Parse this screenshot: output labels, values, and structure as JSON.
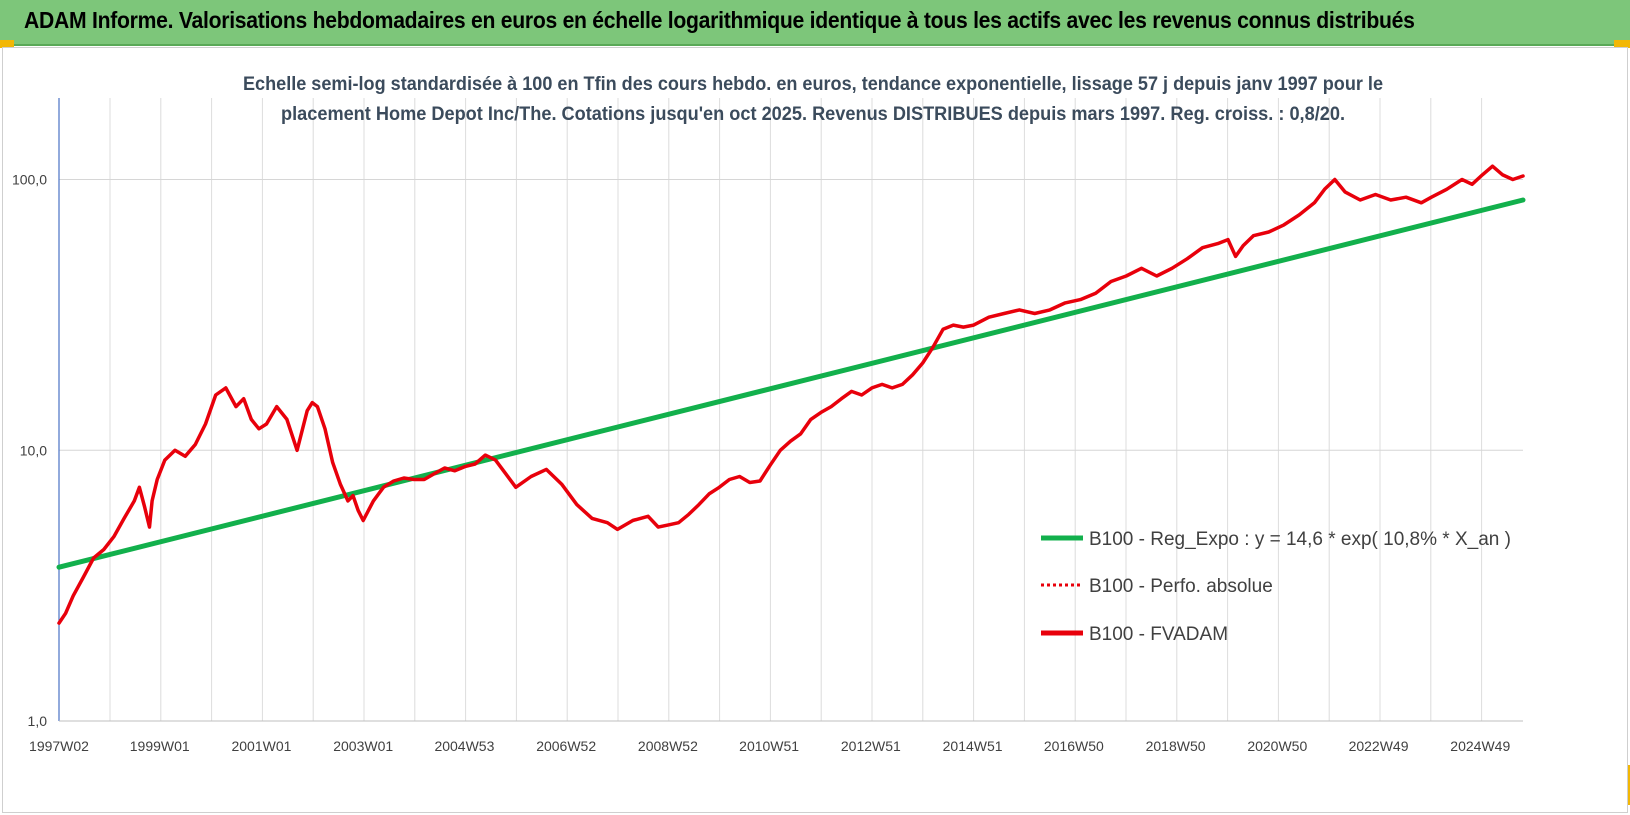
{
  "banner": {
    "title": "ADAM Informe. Valorisations hebdomadaires en euros en échelle logarithmique identique à tous les actifs avec les revenus connus distribués",
    "background": "#7dc67a"
  },
  "chart_data": {
    "type": "line",
    "title_lines": [
      "Echelle semi-log standardisée à 100 en Tfin des cours hebdo. en euros, tendance exponentielle, lissage 57 j depuis janv 1997 pour le",
      "placement Home Depot Inc/The. Cotations jusqu'en oct 2025. Revenus DISTRIBUES depuis mars 1997. Reg. croiss. : 0,8/20."
    ],
    "y_scale": "log",
    "ylim": [
      1,
      200
    ],
    "y_ticks": [
      {
        "value": 1,
        "label": "1,0"
      },
      {
        "value": 10,
        "label": "10,0"
      },
      {
        "value": 100,
        "label": "100,0"
      }
    ],
    "xlim": [
      1997.02,
      2025.8
    ],
    "x_ticks": [
      {
        "t": 1997.02,
        "label": "1997W02"
      },
      {
        "t": 1999.0,
        "label": "1999W01"
      },
      {
        "t": 2001.0,
        "label": "2001W01"
      },
      {
        "t": 2003.0,
        "label": "2003W01"
      },
      {
        "t": 2004.99,
        "label": "2004W53"
      },
      {
        "t": 2006.99,
        "label": "2006W52"
      },
      {
        "t": 2008.99,
        "label": "2008W52"
      },
      {
        "t": 2010.98,
        "label": "2010W51"
      },
      {
        "t": 2012.98,
        "label": "2012W51"
      },
      {
        "t": 2014.98,
        "label": "2014W51"
      },
      {
        "t": 2016.97,
        "label": "2016W50"
      },
      {
        "t": 2018.97,
        "label": "2018W50"
      },
      {
        "t": 2020.97,
        "label": "2020W50"
      },
      {
        "t": 2022.96,
        "label": "2022W49"
      },
      {
        "t": 2024.96,
        "label": "2024W49"
      }
    ],
    "grid": {
      "horizontal": true,
      "vertical": true
    },
    "legend_position": "bottom-right",
    "series": [
      {
        "name": "B100 - Reg_Expo : y = 14,6 * exp( 10,8% *  X_an )",
        "kind": "trend",
        "color": "#12b04c",
        "style": "solid",
        "x": [
          1997.02,
          2025.8
        ],
        "y": [
          3.7,
          84
        ]
      },
      {
        "name": "B100 - Perfo. absolue",
        "kind": "performance",
        "color": "#e8000b",
        "style": "dotted",
        "x": [],
        "y": []
      },
      {
        "name": "B100 - FVADAM",
        "kind": "fvadam",
        "color": "#e8000b",
        "style": "solid",
        "x": [
          1997.02,
          1997.15,
          1997.3,
          1997.5,
          1997.7,
          1997.9,
          1998.1,
          1998.3,
          1998.5,
          1998.6,
          1998.7,
          1998.8,
          1998.85,
          1998.95,
          1999.1,
          1999.3,
          1999.5,
          1999.7,
          1999.9,
          2000.1,
          2000.3,
          2000.5,
          2000.65,
          2000.8,
          2000.95,
          2001.1,
          2001.3,
          2001.5,
          2001.7,
          2001.9,
          2002.0,
          2002.1,
          2002.25,
          2002.4,
          2002.55,
          2002.7,
          2002.8,
          2002.9,
          2003.0,
          2003.2,
          2003.4,
          2003.6,
          2003.8,
          2004.0,
          2004.2,
          2004.4,
          2004.6,
          2004.8,
          2005.0,
          2005.2,
          2005.4,
          2005.6,
          2005.8,
          2006.0,
          2006.3,
          2006.6,
          2006.9,
          2007.2,
          2007.5,
          2007.8,
          2008.0,
          2008.3,
          2008.6,
          2008.8,
          2009.0,
          2009.2,
          2009.4,
          2009.6,
          2009.8,
          2010.0,
          2010.2,
          2010.4,
          2010.6,
          2010.8,
          2011.0,
          2011.2,
          2011.4,
          2011.6,
          2011.8,
          2012.0,
          2012.2,
          2012.4,
          2012.6,
          2012.8,
          2013.0,
          2013.2,
          2013.4,
          2013.6,
          2013.8,
          2014.0,
          2014.2,
          2014.4,
          2014.6,
          2014.8,
          2015.0,
          2015.3,
          2015.6,
          2015.9,
          2016.2,
          2016.5,
          2016.8,
          2017.1,
          2017.4,
          2017.7,
          2018.0,
          2018.3,
          2018.6,
          2018.9,
          2019.2,
          2019.5,
          2019.8,
          2020.0,
          2020.15,
          2020.3,
          2020.5,
          2020.8,
          2021.1,
          2021.4,
          2021.7,
          2021.9,
          2022.1,
          2022.3,
          2022.6,
          2022.9,
          2023.2,
          2023.5,
          2023.8,
          2024.0,
          2024.3,
          2024.6,
          2024.8,
          2025.0,
          2025.2,
          2025.4,
          2025.6,
          2025.8
        ],
        "y": [
          2.3,
          2.5,
          2.9,
          3.4,
          4.0,
          4.3,
          4.8,
          5.6,
          6.5,
          7.3,
          6.2,
          5.2,
          6.5,
          7.8,
          9.2,
          10.0,
          9.5,
          10.5,
          12.5,
          16.0,
          17.0,
          14.5,
          15.5,
          13.0,
          12.0,
          12.5,
          14.5,
          13.0,
          10.0,
          14.0,
          15.0,
          14.5,
          12.0,
          9.0,
          7.5,
          6.5,
          6.8,
          6.0,
          5.5,
          6.5,
          7.3,
          7.7,
          7.9,
          7.8,
          7.8,
          8.2,
          8.6,
          8.4,
          8.7,
          8.9,
          9.6,
          9.2,
          8.2,
          7.3,
          8.0,
          8.5,
          7.5,
          6.3,
          5.6,
          5.4,
          5.1,
          5.5,
          5.7,
          5.2,
          5.3,
          5.4,
          5.8,
          6.3,
          6.9,
          7.3,
          7.8,
          8.0,
          7.6,
          7.7,
          8.8,
          10.0,
          10.8,
          11.5,
          13.0,
          13.8,
          14.5,
          15.5,
          16.5,
          16.0,
          17.0,
          17.5,
          17.0,
          17.5,
          19.0,
          21.0,
          24.0,
          28.0,
          29.0,
          28.5,
          29.0,
          31.0,
          32.0,
          33.0,
          32.0,
          33.0,
          35.0,
          36.0,
          38.0,
          42.0,
          44.0,
          47.0,
          44.0,
          47.0,
          51.0,
          56.0,
          58.0,
          60.0,
          52.0,
          57.0,
          62.0,
          64.0,
          68.0,
          74.0,
          82.0,
          92.0,
          100.0,
          90.0,
          84.0,
          88.0,
          84.0,
          86.0,
          82.0,
          86.0,
          92.0,
          100.0,
          96.0,
          104.0,
          112.0,
          104.0,
          100.0,
          103.0
        ]
      }
    ]
  }
}
